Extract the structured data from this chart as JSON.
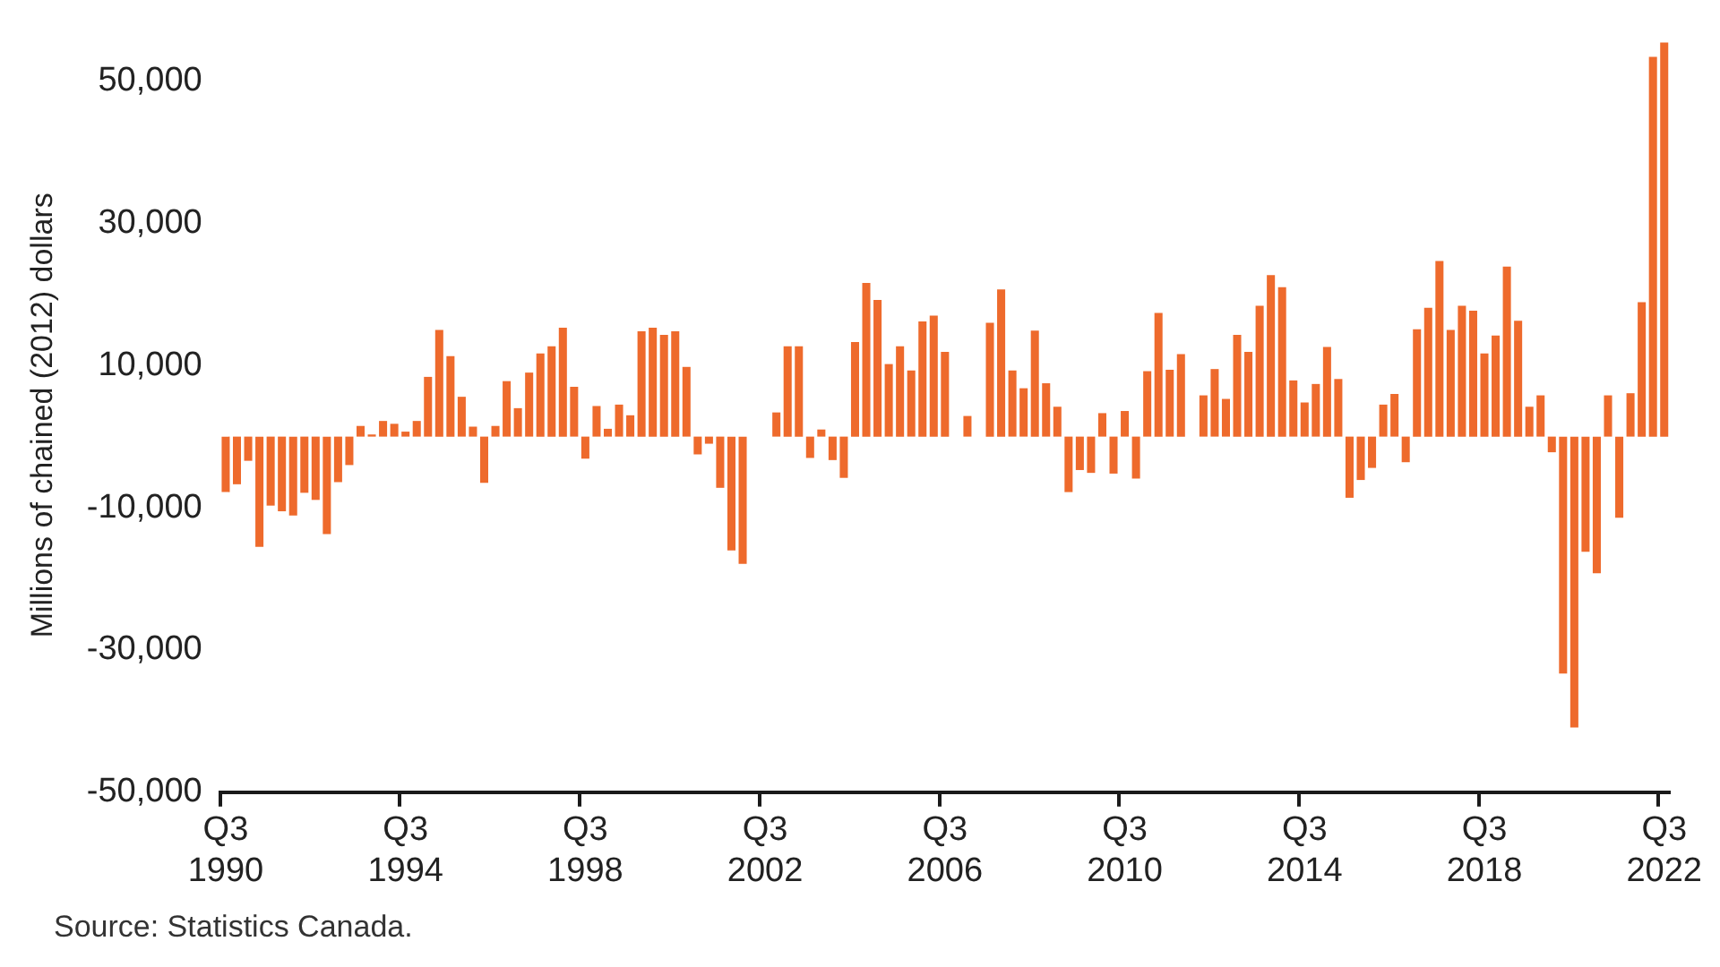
{
  "chart_data": {
    "type": "bar",
    "ylabel": "Millions of chained (2012) dollars",
    "color": "#ee6a2c",
    "categories": [
      "Q3 1990",
      null,
      null,
      null,
      null,
      null,
      null,
      null,
      null,
      null,
      null,
      null,
      null,
      null,
      null,
      null,
      "Q3 1994",
      null,
      null,
      null,
      null,
      null,
      null,
      null,
      null,
      null,
      null,
      null,
      null,
      null,
      null,
      null,
      "Q3 1998",
      null,
      null,
      null,
      null,
      null,
      null,
      null,
      null,
      null,
      null,
      null,
      null,
      null,
      null,
      null,
      "Q3 2002",
      null,
      null,
      null,
      null,
      null,
      null,
      null,
      null,
      null,
      null,
      null,
      null,
      null,
      null,
      null,
      "Q3 2006",
      null,
      null,
      null,
      null,
      null,
      null,
      null,
      null,
      null,
      null,
      null,
      null,
      null,
      null,
      null,
      "Q3 2010",
      null,
      null,
      null,
      null,
      null,
      null,
      null,
      null,
      null,
      null,
      null,
      null,
      null,
      null,
      null,
      "Q3 2014",
      null,
      null,
      null,
      null,
      null,
      null,
      null,
      null,
      null,
      null,
      null,
      null,
      null,
      null,
      null,
      "Q3 2018",
      null,
      null,
      null,
      null,
      null,
      null,
      null,
      null,
      null,
      null,
      null,
      null,
      null,
      null,
      null,
      "Q3 2022"
    ],
    "values": [
      -7800,
      -6700,
      -3400,
      -15500,
      -9700,
      -10500,
      -11100,
      -7900,
      -8900,
      -13700,
      -6400,
      -4000,
      1500,
      300,
      2200,
      1800,
      700,
      2200,
      8400,
      15000,
      11300,
      5600,
      1400,
      -6500,
      1500,
      7800,
      4000,
      9000,
      11700,
      12700,
      15300,
      7000,
      -3100,
      4300,
      1100,
      4500,
      3000,
      14800,
      15300,
      14300,
      14800,
      9800,
      -2500,
      -1000,
      -7200,
      -16000,
      -17900,
      0,
      0,
      3400,
      12700,
      12700,
      -3000,
      1000,
      -3300,
      -5800,
      13300,
      21600,
      19200,
      10200,
      12700,
      9300,
      16200,
      17000,
      11900,
      0,
      2900,
      0,
      16000,
      20700,
      9300,
      6800,
      14900,
      7500,
      4200,
      -7800,
      -4700,
      -5100,
      3300,
      -5200,
      3600,
      -5900,
      9200,
      17400,
      9400,
      11600,
      0,
      5800,
      9500,
      5300,
      14300,
      11900,
      18400,
      22700,
      21000,
      7900,
      4800,
      7400,
      12600,
      8100,
      -8600,
      -6100,
      -4400,
      4500,
      6000,
      -3600,
      15100,
      18100,
      24700,
      15000,
      18400,
      17700,
      11700,
      14200,
      23900,
      16300,
      4200,
      5800,
      -2200,
      -33300,
      -40900,
      -16200,
      -19200,
      5800,
      -11400,
      6100,
      18900,
      53400,
      55400
    ],
    "ylim": [
      -50000,
      56000
    ],
    "yticks": [
      {
        "value": -50000,
        "label": "-50,000"
      },
      {
        "value": -30000,
        "label": "-30,000"
      },
      {
        "value": -10000,
        "label": "-10,000"
      },
      {
        "value": 10000,
        "label": "10,000"
      },
      {
        "value": 30000,
        "label": "30,000"
      },
      {
        "value": 50000,
        "label": "50,000"
      }
    ],
    "grid": false,
    "legend": false,
    "annotations": [
      "Source: Statistics Canada."
    ]
  }
}
